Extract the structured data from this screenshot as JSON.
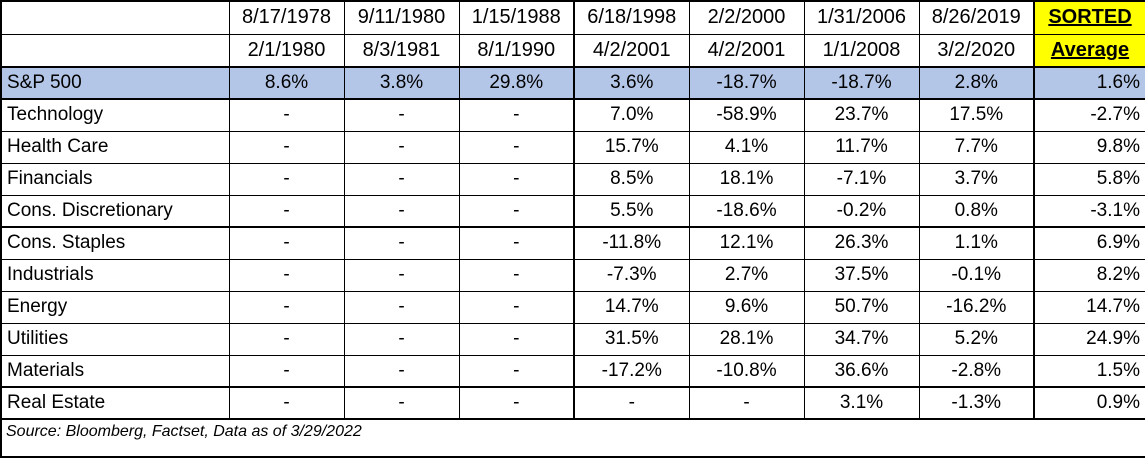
{
  "colors": {
    "highlight_row_blue": "#B4C6E7",
    "sorted_header_yellow": "#FFFF00",
    "border_black": "#000000",
    "background": "#FFFFFF"
  },
  "table": {
    "columns": [
      {
        "start": "8/17/1978",
        "end": "2/1/1980"
      },
      {
        "start": "9/11/1980",
        "end": "8/3/1981"
      },
      {
        "start": "1/15/1988",
        "end": "8/1/1990"
      },
      {
        "start": "6/18/1998",
        "end": "4/2/2001"
      },
      {
        "start": "2/2/2000",
        "end": "4/2/2001"
      },
      {
        "start": "1/31/2006",
        "end": "1/1/2008"
      },
      {
        "start": "8/26/2019",
        "end": "3/2/2020"
      }
    ],
    "sorted_header": {
      "line1": "SORTED",
      "line2": "Average"
    },
    "rows": [
      {
        "label": "S&P 500",
        "highlight": true,
        "values": [
          "8.6%",
          "3.8%",
          "29.8%",
          "3.6%",
          "-18.7%",
          "-18.7%",
          "2.8%"
        ],
        "average": "1.6%"
      },
      {
        "label": "Technology",
        "highlight": false,
        "values": [
          "-",
          "-",
          "-",
          "7.0%",
          "-58.9%",
          "23.7%",
          "17.5%"
        ],
        "average": "-2.7%"
      },
      {
        "label": "Health Care",
        "highlight": false,
        "values": [
          "-",
          "-",
          "-",
          "15.7%",
          "4.1%",
          "11.7%",
          "7.7%"
        ],
        "average": "9.8%"
      },
      {
        "label": "Financials",
        "highlight": false,
        "values": [
          "-",
          "-",
          "-",
          "8.5%",
          "18.1%",
          "-7.1%",
          "3.7%"
        ],
        "average": "5.8%"
      },
      {
        "label": "Cons. Discretionary",
        "highlight": false,
        "values": [
          "-",
          "-",
          "-",
          "5.5%",
          "-18.6%",
          "-0.2%",
          "0.8%"
        ],
        "average": "-3.1%"
      },
      {
        "label": "Cons. Staples",
        "highlight": false,
        "values": [
          "-",
          "-",
          "-",
          "-11.8%",
          "12.1%",
          "26.3%",
          "1.1%"
        ],
        "average": "6.9%"
      },
      {
        "label": "Industrials",
        "highlight": false,
        "values": [
          "-",
          "-",
          "-",
          "-7.3%",
          "2.7%",
          "37.5%",
          "-0.1%"
        ],
        "average": "8.2%"
      },
      {
        "label": "Energy",
        "highlight": false,
        "values": [
          "-",
          "-",
          "-",
          "14.7%",
          "9.6%",
          "50.7%",
          "-16.2%"
        ],
        "average": "14.7%"
      },
      {
        "label": "Utilities",
        "highlight": false,
        "values": [
          "-",
          "-",
          "-",
          "31.5%",
          "28.1%",
          "34.7%",
          "5.2%"
        ],
        "average": "24.9%"
      },
      {
        "label": "Materials",
        "highlight": false,
        "values": [
          "-",
          "-",
          "-",
          "-17.2%",
          "-10.8%",
          "36.6%",
          "-2.8%"
        ],
        "average": "1.5%"
      },
      {
        "label": "Real Estate",
        "highlight": false,
        "values": [
          "-",
          "-",
          "-",
          "-",
          "-",
          "3.1%",
          "-1.3%"
        ],
        "average": "0.9%"
      }
    ],
    "source_note": "Source: Bloomberg, Factset, Data as of 3/29/2022"
  },
  "chart_data": {
    "type": "table",
    "columns": [
      {
        "period_start": "8/17/1978",
        "period_end": "2/1/1980"
      },
      {
        "period_start": "9/11/1980",
        "period_end": "8/3/1981"
      },
      {
        "period_start": "1/15/1988",
        "period_end": "8/1/1990"
      },
      {
        "period_start": "6/18/1998",
        "period_end": "4/2/2001"
      },
      {
        "period_start": "2/2/2000",
        "period_end": "4/2/2001"
      },
      {
        "period_start": "1/31/2006",
        "period_end": "1/1/2008"
      },
      {
        "period_start": "8/26/2019",
        "period_end": "3/2/2020"
      }
    ],
    "rows": [
      {
        "name": "S&P 500",
        "values_pct": [
          8.6,
          3.8,
          29.8,
          3.6,
          -18.7,
          -18.7,
          2.8
        ],
        "sorted_average_pct": 1.6
      },
      {
        "name": "Technology",
        "values_pct": [
          null,
          null,
          null,
          7.0,
          -58.9,
          23.7,
          17.5
        ],
        "sorted_average_pct": -2.7
      },
      {
        "name": "Health Care",
        "values_pct": [
          null,
          null,
          null,
          15.7,
          4.1,
          11.7,
          7.7
        ],
        "sorted_average_pct": 9.8
      },
      {
        "name": "Financials",
        "values_pct": [
          null,
          null,
          null,
          8.5,
          18.1,
          -7.1,
          3.7
        ],
        "sorted_average_pct": 5.8
      },
      {
        "name": "Cons. Discretionary",
        "values_pct": [
          null,
          null,
          null,
          5.5,
          -18.6,
          -0.2,
          0.8
        ],
        "sorted_average_pct": -3.1
      },
      {
        "name": "Cons. Staples",
        "values_pct": [
          null,
          null,
          null,
          -11.8,
          12.1,
          26.3,
          1.1
        ],
        "sorted_average_pct": 6.9
      },
      {
        "name": "Industrials",
        "values_pct": [
          null,
          null,
          null,
          -7.3,
          2.7,
          37.5,
          -0.1
        ],
        "sorted_average_pct": 8.2
      },
      {
        "name": "Energy",
        "values_pct": [
          null,
          null,
          null,
          14.7,
          9.6,
          50.7,
          -16.2
        ],
        "sorted_average_pct": 14.7
      },
      {
        "name": "Utilities",
        "values_pct": [
          null,
          null,
          null,
          31.5,
          28.1,
          34.7,
          5.2
        ],
        "sorted_average_pct": 24.9
      },
      {
        "name": "Materials",
        "values_pct": [
          null,
          null,
          null,
          -17.2,
          -10.8,
          36.6,
          -2.8
        ],
        "sorted_average_pct": 1.5
      },
      {
        "name": "Real Estate",
        "values_pct": [
          null,
          null,
          null,
          null,
          null,
          3.1,
          -1.3
        ],
        "sorted_average_pct": 0.9
      }
    ],
    "source": "Source: Bloomberg, Factset, Data as of 3/29/2022"
  }
}
